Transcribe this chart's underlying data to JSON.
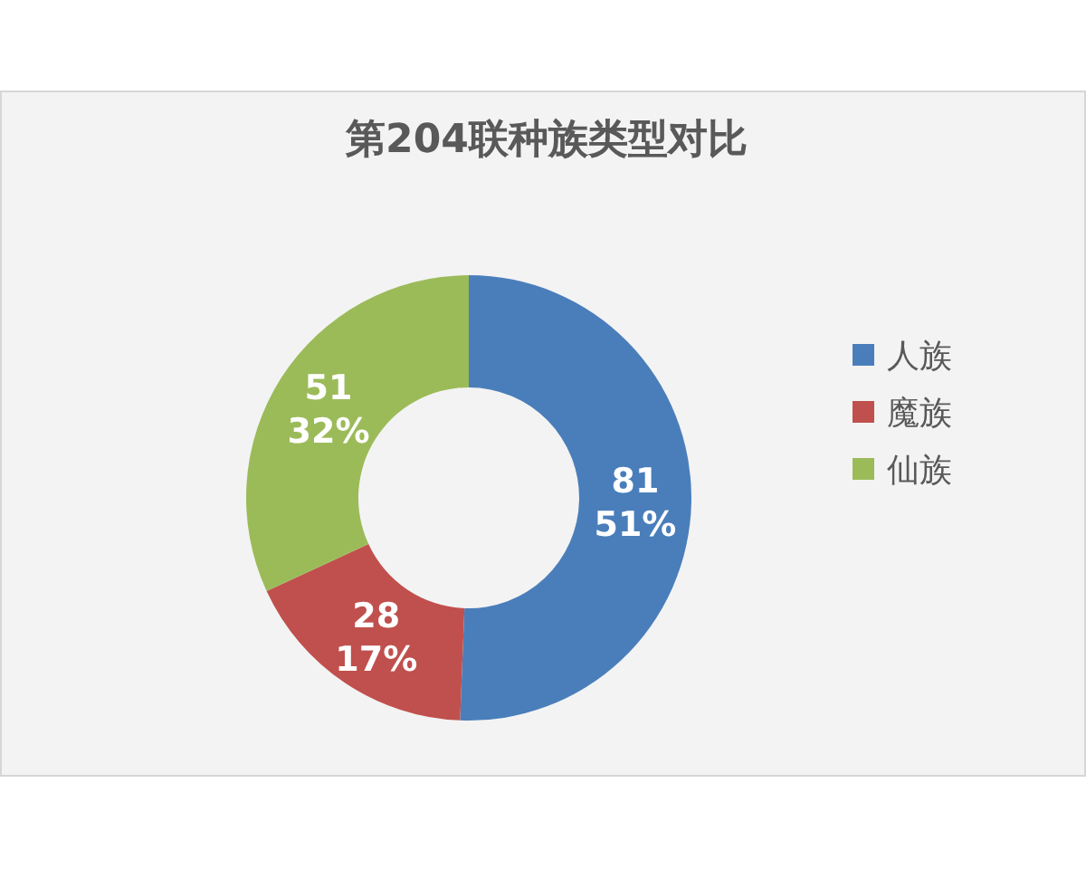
{
  "chart_data": {
    "type": "donut",
    "title": "第204联种族类型对比",
    "categories": [
      "人族",
      "魔族",
      "仙族"
    ],
    "values": [
      81,
      28,
      51
    ],
    "colors": [
      "#4a7ebb",
      "#c0504d",
      "#9bbb59"
    ],
    "value_labels": [
      "81\n51%",
      "28\n17%",
      "51\n32%"
    ],
    "legend": "right"
  }
}
